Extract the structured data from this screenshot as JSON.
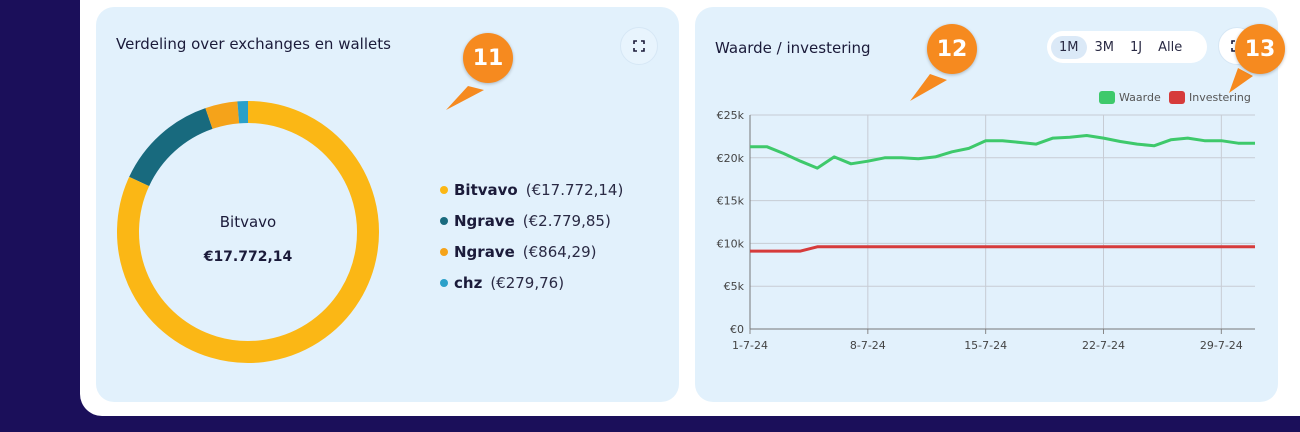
{
  "distribution_card": {
    "title": "Verdeling over exchanges en wallets",
    "center_label": "Bitvavo",
    "center_value": "€17.772,14",
    "expand_icon": "expand-icon",
    "legend": [
      {
        "name": "Bitvavo",
        "value": "(€17.772,14)",
        "color": "#fbb715",
        "amount": 17772.14
      },
      {
        "name": "Ngrave",
        "value": "(€2.779,85)",
        "color": "#186a7e",
        "amount": 2779.85
      },
      {
        "name": "Ngrave",
        "value": "(€864,29)",
        "color": "#f5a31a",
        "amount": 864.29
      },
      {
        "name": "chz",
        "value": "(€279,76)",
        "color": "#2aa0c9",
        "amount": 279.76
      }
    ]
  },
  "value_card": {
    "title": "Waarde / investering",
    "ranges": [
      "1M",
      "3M",
      "1J",
      "Alle"
    ],
    "active_range": "1M",
    "expand_icon": "expand-icon"
  },
  "badges": [
    "11",
    "12",
    "13"
  ],
  "chart_data": {
    "type": "line",
    "x": [
      "1-7-24",
      "2-7-24",
      "3-7-24",
      "4-7-24",
      "5-7-24",
      "6-7-24",
      "7-7-24",
      "8-7-24",
      "9-7-24",
      "10-7-24",
      "11-7-24",
      "12-7-24",
      "13-7-24",
      "14-7-24",
      "15-7-24",
      "16-7-24",
      "17-7-24",
      "18-7-24",
      "19-7-24",
      "20-7-24",
      "21-7-24",
      "22-7-24",
      "23-7-24",
      "24-7-24",
      "25-7-24",
      "26-7-24",
      "27-7-24",
      "28-7-24",
      "29-7-24",
      "30-7-24",
      "31-7-24"
    ],
    "x_ticks": [
      "1-7-24",
      "8-7-24",
      "15-7-24",
      "22-7-24",
      "29-7-24"
    ],
    "y_ticks": [
      "€0",
      "€5k",
      "€10k",
      "€15k",
      "€20k",
      "€25k"
    ],
    "ylim": [
      0,
      25000
    ],
    "grid": true,
    "legend_position": "top-right",
    "series": [
      {
        "name": "Waarde",
        "color": "#3ec96b",
        "values": [
          21300,
          21300,
          20500,
          19600,
          18800,
          20100,
          19300,
          19600,
          20000,
          20000,
          19900,
          20100,
          20700,
          21100,
          22000,
          22000,
          21800,
          21600,
          22300,
          22400,
          22600,
          22300,
          21900,
          21600,
          21400,
          22100,
          22300,
          22000,
          22000,
          21700,
          21700
        ]
      },
      {
        "name": "Investering",
        "color": "#d63b3b",
        "values": [
          9100,
          9100,
          9100,
          9100,
          9600,
          9600,
          9600,
          9600,
          9600,
          9600,
          9600,
          9600,
          9600,
          9600,
          9600,
          9600,
          9600,
          9600,
          9600,
          9600,
          9600,
          9600,
          9600,
          9600,
          9600,
          9600,
          9600,
          9600,
          9600,
          9600,
          9600
        ]
      }
    ]
  }
}
